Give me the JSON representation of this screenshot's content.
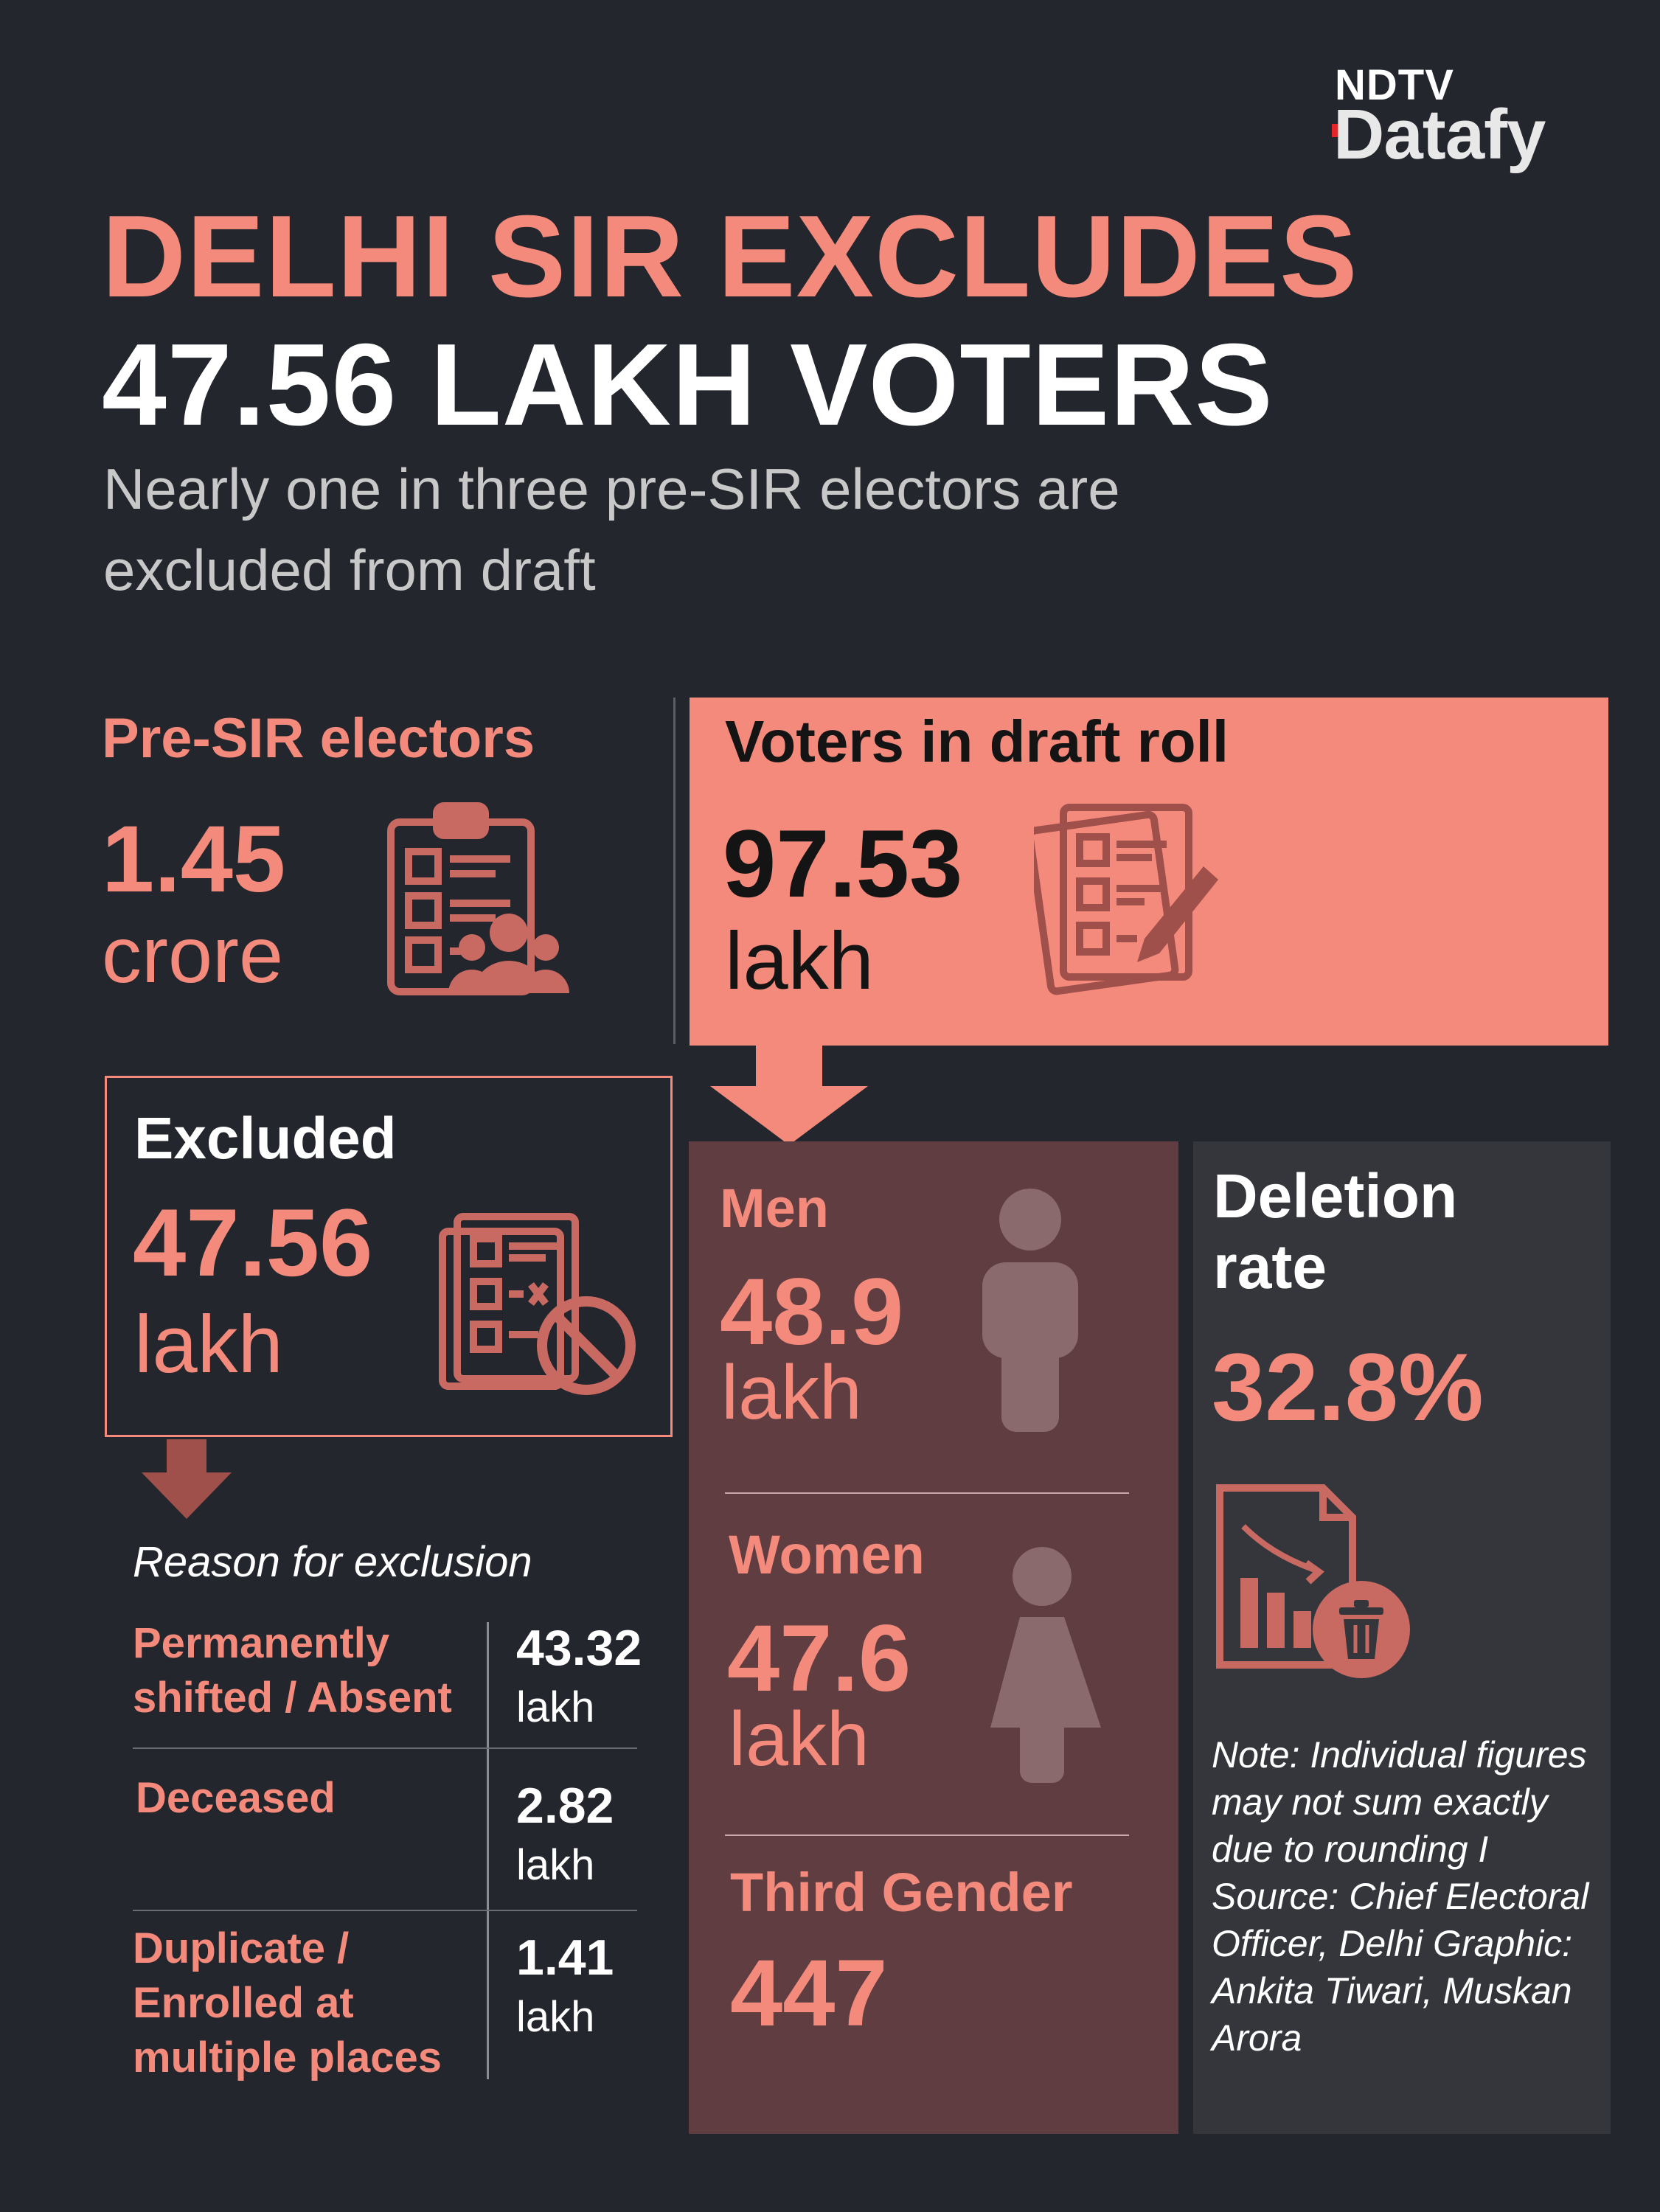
{
  "brand": {
    "ndtv": "NDTV",
    "datafy": "Datafy",
    "accent": "#e3262a"
  },
  "title": {
    "line1": "DELHI SIR EXCLUDES",
    "line2": "47.56 LAKH VOTERS"
  },
  "subtitle": "Nearly one in three pre-SIR electors are excluded from draft",
  "pre_sir": {
    "label": "Pre-SIR electors",
    "value": "1.45",
    "unit": "crore",
    "icon": "clipboard-voters-icon"
  },
  "draft_roll": {
    "label": "Voters in draft roll",
    "value": "97.53",
    "unit": "lakh",
    "icon": "document-pen-icon"
  },
  "excluded": {
    "label": "Excluded",
    "value": "47.56",
    "unit": "lakh",
    "icon": "document-blocked-icon"
  },
  "reasons": {
    "title": "Reason for exclusion",
    "items": [
      {
        "label": "Permanently shifted / Absent",
        "value": "43.32",
        "unit": "lakh"
      },
      {
        "label": "Deceased",
        "value": "2.82",
        "unit": "lakh"
      },
      {
        "label": "Duplicate / Enrolled at multiple places",
        "value": "1.41",
        "unit": "lakh"
      }
    ]
  },
  "gender": {
    "men": {
      "label": "Men",
      "value": "48.9",
      "unit": "lakh",
      "icon": "man-icon"
    },
    "women": {
      "label": "Women",
      "value": "47.6",
      "unit": "lakh",
      "icon": "woman-icon"
    },
    "third": {
      "label": "Third Gender",
      "value": "447"
    }
  },
  "deletion": {
    "label": "Deletion rate",
    "value": "32.8%",
    "icon": "chart-delete-icon",
    "note": "Note: Individual figures may not sum exactly due to rounding I Source: Chief Electoral Officer, Delhi Graphic: Ankita Tiwari, Muskan Arora"
  },
  "colors": {
    "background": "#23262d",
    "coral": "#f48a7c",
    "maroon": "#5f3d40",
    "panel": "#34363c"
  }
}
